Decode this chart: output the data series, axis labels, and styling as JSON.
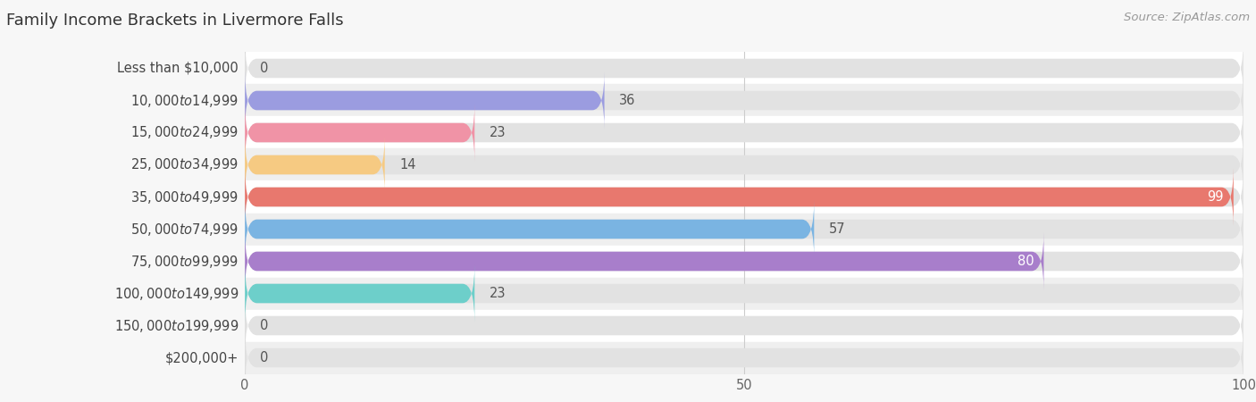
{
  "title": "Family Income Brackets in Livermore Falls",
  "source": "Source: ZipAtlas.com",
  "categories": [
    "Less than $10,000",
    "$10,000 to $14,999",
    "$15,000 to $24,999",
    "$25,000 to $34,999",
    "$35,000 to $49,999",
    "$50,000 to $74,999",
    "$75,000 to $99,999",
    "$100,000 to $149,999",
    "$150,000 to $199,999",
    "$200,000+"
  ],
  "values": [
    0,
    36,
    23,
    14,
    99,
    57,
    80,
    23,
    0,
    0
  ],
  "bar_colors": [
    "#6dcfca",
    "#9b9ce0",
    "#f093a6",
    "#f6ca82",
    "#e8786e",
    "#7ab4e2",
    "#a87ecb",
    "#6dcfca",
    "#b0b9e8",
    "#f5a9c2"
  ],
  "label_colors": [
    "#555555",
    "#555555",
    "#555555",
    "#555555",
    "#ffffff",
    "#555555",
    "#ffffff",
    "#555555",
    "#555555",
    "#555555"
  ],
  "row_colors": [
    "#ffffff",
    "#efefef"
  ],
  "xlim": [
    0,
    100
  ],
  "bg_bar_color": "#e2e2e2",
  "background_color": "#f7f7f7",
  "title_fontsize": 13,
  "tick_fontsize": 10.5,
  "label_fontsize": 10.5,
  "source_fontsize": 9.5,
  "bar_height": 0.6,
  "y_label_width": 0.195
}
